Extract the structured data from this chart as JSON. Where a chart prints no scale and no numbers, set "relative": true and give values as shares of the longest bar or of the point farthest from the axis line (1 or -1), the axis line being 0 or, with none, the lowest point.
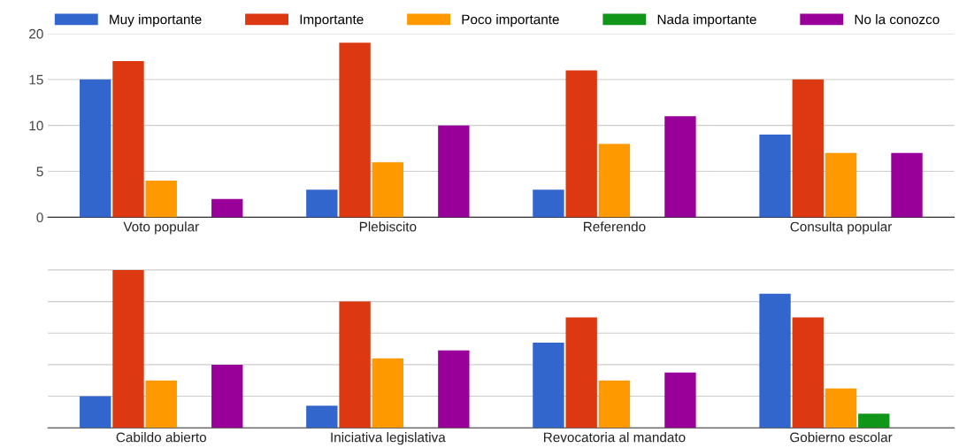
{
  "chart_data": [
    {
      "type": "bar",
      "categories": [
        "Voto popular",
        "Plebiscito",
        "Referendo",
        "Consulta popular"
      ],
      "ylim": [
        0,
        20
      ],
      "yticks": [
        0,
        5,
        10,
        15,
        20
      ],
      "grid": "y",
      "legend": "top",
      "series": [
        {
          "name": "Muy importante",
          "color": "#3366cc",
          "values": [
            15,
            3,
            3,
            9
          ]
        },
        {
          "name": "Importante",
          "color": "#dc3912",
          "values": [
            17,
            19,
            16,
            15
          ]
        },
        {
          "name": "Poco importante",
          "color": "#ff9900",
          "values": [
            4,
            6,
            8,
            7
          ]
        },
        {
          "name": "Nada importante",
          "color": "#109618",
          "values": [
            0,
            0,
            0,
            0
          ]
        },
        {
          "name": "No la conozco",
          "color": "#990099",
          "values": [
            2,
            10,
            11,
            7
          ]
        }
      ]
    },
    {
      "type": "bar",
      "relative": true,
      "categories": [
        "Cabildo abierto",
        "Iniciativa legislativa",
        "Revocatoria al mandato",
        "Gobierno escolar"
      ],
      "grid": "y",
      "series": [
        {
          "color": "#3366cc",
          "values": [
            0.2,
            0.14,
            0.54,
            0.85
          ]
        },
        {
          "color": "#dc3912",
          "values": [
            1,
            0.8,
            0.7,
            0.7
          ]
        },
        {
          "color": "#ff9900",
          "values": [
            0.3,
            0.44,
            0.3,
            0.25
          ]
        },
        {
          "color": "#109618",
          "values": [
            0,
            0,
            0,
            0.09
          ]
        },
        {
          "color": "#990099",
          "values": [
            0.4,
            0.49,
            0.35,
            0
          ]
        }
      ]
    }
  ]
}
